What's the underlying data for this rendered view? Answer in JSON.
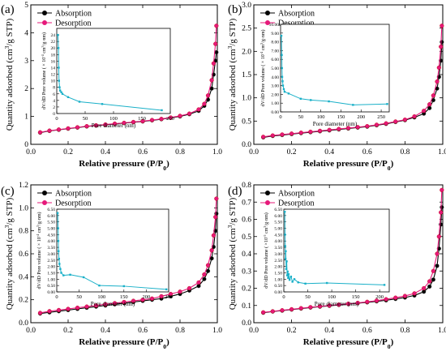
{
  "figure": {
    "panels": [
      {
        "id": "a",
        "label": "(a)"
      },
      {
        "id": "b",
        "label": "(b)"
      },
      {
        "id": "c",
        "label": "(c)"
      },
      {
        "id": "d",
        "label": "(d)"
      }
    ]
  },
  "chart_data": [
    {
      "panel": "(a)",
      "type": "line",
      "xlabel": "Relative pressure (P/P0)",
      "ylabel": "Quantity adsorbed (cm3/g STP)",
      "xlim": [
        0.0,
        1.0
      ],
      "ylim": [
        0.0,
        5.0
      ],
      "xticks": [
        0.0,
        0.2,
        0.4,
        0.6,
        0.8,
        1.0
      ],
      "yticks": [
        0,
        1,
        2,
        3,
        4,
        5
      ],
      "ytick_labels": [
        "0",
        "1",
        "2",
        "3",
        "4",
        "5"
      ],
      "legend_position": "top-left",
      "series": [
        {
          "name": "Absorption",
          "color": "#000000",
          "x": [
            0.05,
            0.1,
            0.15,
            0.2,
            0.25,
            0.3,
            0.35,
            0.4,
            0.45,
            0.5,
            0.55,
            0.6,
            0.65,
            0.7,
            0.75,
            0.8,
            0.85,
            0.9,
            0.93,
            0.95,
            0.97,
            0.98,
            0.99,
            0.995
          ],
          "y": [
            0.42,
            0.48,
            0.52,
            0.56,
            0.6,
            0.64,
            0.67,
            0.7,
            0.73,
            0.76,
            0.79,
            0.82,
            0.86,
            0.9,
            0.95,
            1.0,
            1.08,
            1.2,
            1.38,
            1.6,
            2.0,
            2.5,
            3.0,
            3.3
          ]
        },
        {
          "name": "Desorption",
          "color": "#e6187a",
          "x": [
            0.995,
            0.99,
            0.98,
            0.97,
            0.95,
            0.93,
            0.9,
            0.85,
            0.8,
            0.75,
            0.7,
            0.65,
            0.6,
            0.55,
            0.5,
            0.45,
            0.4,
            0.35,
            0.3,
            0.25,
            0.2,
            0.15,
            0.1,
            0.05
          ],
          "y": [
            4.25,
            3.6,
            2.9,
            2.3,
            1.75,
            1.45,
            1.25,
            1.1,
            1.02,
            0.96,
            0.91,
            0.87,
            0.83,
            0.8,
            0.77,
            0.74,
            0.71,
            0.68,
            0.65,
            0.61,
            0.57,
            0.53,
            0.49,
            0.43
          ]
        }
      ],
      "inset": {
        "type": "line",
        "xlabel": "Pore diameter (nm)",
        "ylabel": "dV/dD Pore volume ( × 10-4 cm3/g·nm)",
        "xlim": [
          0,
          200
        ],
        "ylim": [
          0,
          26
        ],
        "xticks": [
          0,
          50,
          100,
          150,
          200
        ],
        "yticks": [
          0,
          2,
          4,
          6,
          8,
          10,
          12,
          14,
          16,
          18,
          20,
          22,
          24
        ],
        "color": "#1ab0c8",
        "x": [
          2,
          3,
          3.5,
          4,
          5,
          6,
          8,
          10,
          20,
          40,
          80,
          185
        ],
        "y": [
          24,
          20,
          14,
          10,
          8,
          7,
          6.5,
          6,
          5,
          3.6,
          2.9,
          1.0
        ]
      }
    },
    {
      "panel": "(b)",
      "type": "line",
      "xlabel": "Relative pressure (P/P0)",
      "ylabel": "Quantity adsorbed (cm3/g STP)",
      "xlim": [
        0.0,
        1.0
      ],
      "ylim": [
        0.0,
        3.0
      ],
      "xticks": [
        0.0,
        0.2,
        0.4,
        0.6,
        0.8,
        1.0
      ],
      "yticks": [
        0.0,
        0.5,
        1.0,
        1.5,
        2.0,
        2.5,
        3.0
      ],
      "ytick_labels": [
        "0.0",
        "0.5",
        "1.0",
        "1.5",
        "2.0",
        "2.5",
        "3.0"
      ],
      "legend_position": "top-left",
      "series": [
        {
          "name": "Absorption",
          "color": "#000000",
          "x": [
            0.05,
            0.1,
            0.15,
            0.2,
            0.25,
            0.3,
            0.35,
            0.4,
            0.45,
            0.5,
            0.55,
            0.6,
            0.65,
            0.7,
            0.75,
            0.8,
            0.85,
            0.9,
            0.93,
            0.95,
            0.97,
            0.98,
            0.99,
            0.995
          ],
          "y": [
            0.15,
            0.18,
            0.2,
            0.22,
            0.24,
            0.26,
            0.28,
            0.3,
            0.32,
            0.34,
            0.36,
            0.38,
            0.41,
            0.44,
            0.48,
            0.52,
            0.58,
            0.66,
            0.78,
            0.95,
            1.2,
            1.45,
            1.8,
            2.2
          ]
        },
        {
          "name": "Desorption",
          "color": "#e6187a",
          "x": [
            0.995,
            0.99,
            0.98,
            0.97,
            0.95,
            0.93,
            0.9,
            0.85,
            0.8,
            0.75,
            0.7,
            0.65,
            0.6,
            0.55,
            0.5,
            0.45,
            0.4,
            0.35,
            0.3,
            0.25,
            0.2,
            0.15,
            0.1,
            0.05
          ],
          "y": [
            2.55,
            2.1,
            1.65,
            1.35,
            1.05,
            0.86,
            0.72,
            0.6,
            0.53,
            0.49,
            0.45,
            0.42,
            0.39,
            0.37,
            0.35,
            0.33,
            0.31,
            0.29,
            0.27,
            0.25,
            0.23,
            0.21,
            0.19,
            0.16
          ]
        }
      ],
      "inset": {
        "type": "line",
        "xlabel": "Pore diameter (nm)",
        "ylabel": "dV/dD Pore volume ( × 10-4 cm3/g·nm)",
        "xlim": [
          0,
          270
        ],
        "ylim": [
          0,
          10
        ],
        "xticks": [
          0,
          50,
          100,
          150,
          200,
          250
        ],
        "yticks": [
          0,
          1,
          2,
          3,
          4,
          5,
          6,
          7,
          8,
          9,
          10
        ],
        "ytick_labels": [
          "0.00",
          "1.00",
          "2.00",
          "3.00",
          "4.00",
          "5.00",
          "6.00",
          "7.00",
          "8.00",
          "9.00",
          "10.00"
        ],
        "color": "#1ab0c8",
        "x": [
          2,
          3,
          3.5,
          4,
          5,
          6,
          8,
          10,
          20,
          50,
          75,
          120,
          180,
          265
        ],
        "y": [
          8.7,
          6.5,
          5.0,
          4.0,
          3.5,
          3.0,
          2.6,
          2.3,
          2.1,
          1.5,
          1.35,
          1.2,
          0.8,
          0.9
        ]
      }
    },
    {
      "panel": "(c)",
      "type": "line",
      "xlabel": "Relative pressure (P/P0)",
      "ylabel": "Quantity adsorbed (cm3/g STP)",
      "xlim": [
        0.0,
        1.0
      ],
      "ylim": [
        0.0,
        1.2
      ],
      "xticks": [
        0.0,
        0.2,
        0.4,
        0.6,
        0.8,
        1.0
      ],
      "yticks": [
        0.0,
        0.2,
        0.4,
        0.6,
        0.8,
        1.0,
        1.2
      ],
      "ytick_labels": [
        "0.0",
        "0.2",
        "0.4",
        "0.6",
        "0.8",
        "1.0",
        "1.2"
      ],
      "legend_position": "top-left",
      "series": [
        {
          "name": "Absorption",
          "color": "#000000",
          "x": [
            0.05,
            0.1,
            0.15,
            0.2,
            0.25,
            0.3,
            0.35,
            0.4,
            0.45,
            0.5,
            0.55,
            0.6,
            0.65,
            0.7,
            0.75,
            0.8,
            0.85,
            0.9,
            0.93,
            0.95,
            0.97,
            0.98,
            0.99,
            0.995
          ],
          "y": [
            0.08,
            0.09,
            0.1,
            0.11,
            0.12,
            0.13,
            0.14,
            0.15,
            0.16,
            0.17,
            0.18,
            0.19,
            0.2,
            0.21,
            0.23,
            0.25,
            0.28,
            0.32,
            0.38,
            0.45,
            0.56,
            0.66,
            0.8,
            0.95
          ]
        },
        {
          "name": "Desorption",
          "color": "#e6187a",
          "x": [
            0.995,
            0.99,
            0.98,
            0.97,
            0.95,
            0.93,
            0.9,
            0.85,
            0.8,
            0.75,
            0.7,
            0.65,
            0.6,
            0.55,
            0.5,
            0.45,
            0.4,
            0.35,
            0.3,
            0.25,
            0.2,
            0.15,
            0.1,
            0.05
          ],
          "y": [
            1.08,
            0.92,
            0.76,
            0.63,
            0.5,
            0.42,
            0.35,
            0.3,
            0.27,
            0.25,
            0.23,
            0.21,
            0.2,
            0.19,
            0.18,
            0.17,
            0.16,
            0.15,
            0.14,
            0.13,
            0.12,
            0.11,
            0.1,
            0.085
          ]
        }
      ],
      "inset": {
        "type": "line",
        "xlabel": "Pore diameter (nm)",
        "ylabel": "dV/dD Pore volume ( × 10-4 cm3/g·nm)",
        "xlim": [
          0,
          250
        ],
        "ylim": [
          0,
          6.5
        ],
        "xticks": [
          0,
          50,
          100,
          150,
          200,
          250
        ],
        "yticks": [
          0,
          0.5,
          1,
          1.5,
          2,
          2.5,
          3,
          3.5,
          4,
          4.5,
          5,
          5.5,
          6,
          6.5
        ],
        "ytick_labels": [
          "0.00",
          "0.50",
          "1.00",
          "1.50",
          "2.00",
          "2.50",
          "3.00",
          "3.50",
          "4.00",
          "4.50",
          "5.00",
          "5.50",
          "6.00",
          "6.50"
        ],
        "color": "#1ab0c8",
        "x": [
          2,
          3,
          3.5,
          4,
          5,
          6,
          8,
          10,
          15,
          30,
          60,
          95,
          150,
          245
        ],
        "y": [
          6.2,
          5.0,
          4.0,
          3.2,
          2.6,
          2.2,
          1.8,
          1.5,
          1.3,
          1.35,
          1.15,
          0.5,
          0.45,
          0.2
        ]
      }
    },
    {
      "panel": "(d)",
      "type": "line",
      "xlabel": "Relative pressure (P/P0)",
      "ylabel": "Quantity adsorbed (cm3/g STP)",
      "xlim": [
        0.0,
        1.0
      ],
      "ylim": [
        0.0,
        0.8
      ],
      "xticks": [
        0.0,
        0.2,
        0.4,
        0.6,
        0.8,
        1.0
      ],
      "yticks": [
        0.0,
        0.1,
        0.2,
        0.3,
        0.4,
        0.5,
        0.6,
        0.7,
        0.8
      ],
      "ytick_labels": [
        "0.0",
        "0.1",
        "0.2",
        "0.3",
        "0.4",
        "0.5",
        "0.6",
        "0.7",
        "0.8"
      ],
      "legend_position": "top-left",
      "series": [
        {
          "name": "Absorption",
          "color": "#000000",
          "x": [
            0.05,
            0.1,
            0.15,
            0.2,
            0.25,
            0.3,
            0.35,
            0.4,
            0.45,
            0.5,
            0.55,
            0.6,
            0.65,
            0.7,
            0.75,
            0.8,
            0.85,
            0.9,
            0.93,
            0.95,
            0.97,
            0.98,
            0.99,
            0.995
          ],
          "y": [
            0.058,
            0.065,
            0.07,
            0.076,
            0.082,
            0.088,
            0.093,
            0.098,
            0.103,
            0.108,
            0.113,
            0.118,
            0.124,
            0.13,
            0.138,
            0.146,
            0.158,
            0.18,
            0.21,
            0.25,
            0.33,
            0.43,
            0.57,
            0.67
          ]
        },
        {
          "name": "Desorption",
          "color": "#e6187a",
          "x": [
            0.995,
            0.99,
            0.98,
            0.97,
            0.95,
            0.93,
            0.9,
            0.85,
            0.8,
            0.75,
            0.7,
            0.65,
            0.6,
            0.55,
            0.5,
            0.45,
            0.4,
            0.35,
            0.3,
            0.25,
            0.2,
            0.15,
            0.1,
            0.05
          ],
          "y": [
            0.77,
            0.64,
            0.5,
            0.4,
            0.3,
            0.24,
            0.2,
            0.17,
            0.155,
            0.145,
            0.136,
            0.128,
            0.121,
            0.115,
            0.11,
            0.105,
            0.1,
            0.095,
            0.09,
            0.084,
            0.078,
            0.072,
            0.066,
            0.06
          ]
        }
      ],
      "inset": {
        "type": "line",
        "xlabel": "Pore diameter (nm)",
        "ylabel": "dV/dD Pore volume ( ×10-5 cm3/g·nm)",
        "xlim": [
          0,
          220
        ],
        "ylim": [
          0,
          6.5
        ],
        "xticks": [
          0,
          50,
          100,
          150,
          200
        ],
        "yticks": [
          0,
          0.5,
          1,
          1.5,
          2,
          2.5,
          3,
          3.5,
          4,
          4.5,
          5,
          5.5,
          6,
          6.5
        ],
        "ytick_labels": [
          "0.00",
          "0.50",
          "1.00",
          "1.50",
          "2.00",
          "2.50",
          "3.00",
          "3.50",
          "4.00",
          "4.50",
          "5.00",
          "5.50",
          "6.00",
          "6.50"
        ],
        "color": "#1ab0c8",
        "x": [
          2,
          2.5,
          3,
          3.5,
          4,
          5,
          6,
          7,
          8,
          9,
          10,
          12,
          15,
          18,
          22,
          30,
          45,
          90,
          210
        ],
        "y": [
          6.3,
          4.5,
          3.6,
          2.6,
          3.2,
          1.8,
          2.4,
          1.3,
          1.6,
          1.1,
          1.4,
          0.95,
          1.2,
          0.8,
          1.0,
          0.75,
          0.65,
          0.7,
          0.55
        ]
      }
    }
  ]
}
